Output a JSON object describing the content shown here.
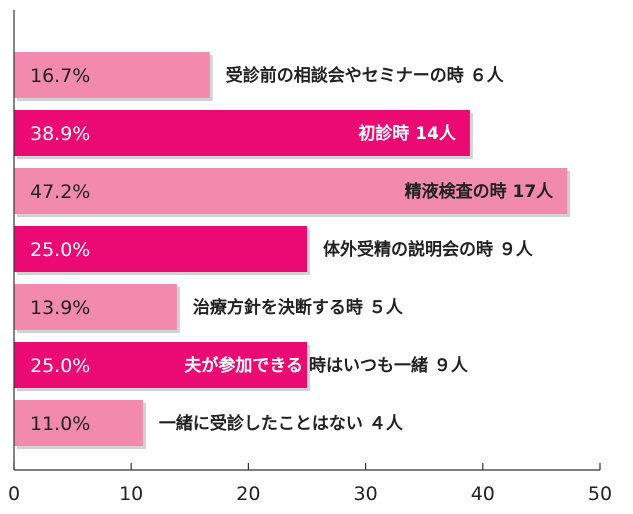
{
  "chart_data": {
    "type": "bar",
    "orientation": "horizontal",
    "categories": [
      "受診前の相談会やセミナーの時 ６人",
      "初診時 14人",
      "精液検査の時 17人",
      "体外受精の説明会の時 ９人",
      "治療方針を決断する時 ５人",
      "夫が参加できる時はいつも一緒 ９人",
      "一緒に受診したことはない ４人"
    ],
    "values": [
      16.7,
      38.9,
      47.2,
      25.0,
      13.9,
      25.0,
      11.0
    ],
    "value_labels": [
      "16.7%",
      "38.9%",
      "47.2%",
      "25.0%",
      "13.9%",
      "25.0%",
      "11.0%"
    ],
    "label_split": [
      null,
      null,
      null,
      null,
      null,
      [
        "夫が参加できる",
        "時はいつも一緒 ９人"
      ],
      null
    ],
    "label_inside": [
      false,
      true,
      true,
      false,
      false,
      false,
      false
    ],
    "bar_colors": [
      "#F28AAE",
      "#EB0A73",
      "#F28AAE",
      "#EB0A73",
      "#F28AAE",
      "#EB0A73",
      "#F28AAE"
    ],
    "xlim": [
      0,
      50
    ],
    "xticks": [
      "0",
      "10",
      "20",
      "30",
      "40",
      "50"
    ],
    "tick_values": [
      0,
      10,
      20,
      30,
      40,
      50
    ],
    "title": "",
    "xlabel": "",
    "ylabel": ""
  }
}
